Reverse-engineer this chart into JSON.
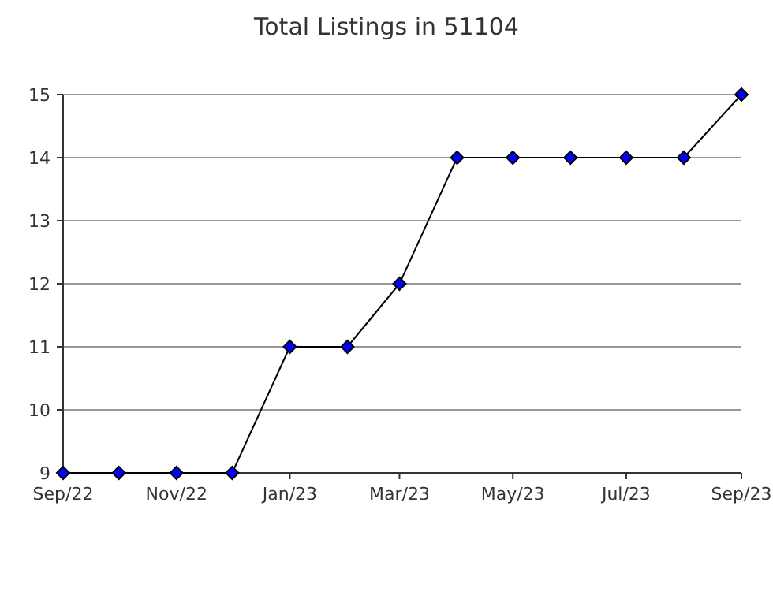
{
  "chart_data": {
    "type": "line",
    "title": "Total Listings in 51104",
    "x": [
      "2022-09",
      "2022-10",
      "2022-11",
      "2022-12",
      "2023-01",
      "2023-02",
      "2023-03",
      "2023-04",
      "2023-05",
      "2023-06",
      "2023-07",
      "2023-08",
      "2023-09"
    ],
    "series": [
      {
        "color": "#0000ff",
        "values": [
          9,
          9,
          9,
          9,
          11,
          11,
          12,
          14,
          14,
          14,
          14,
          14,
          15
        ]
      }
    ],
    "xlim": [
      "2022-09",
      "2023-09"
    ],
    "xticks": [
      {
        "value": "2022-09",
        "label": "Sep/22"
      },
      {
        "value": "2022-11",
        "label": "Nov/22"
      },
      {
        "value": "2023-01",
        "label": "Jan/23"
      },
      {
        "value": "2023-03",
        "label": "Mar/23"
      },
      {
        "value": "2023-05",
        "label": "May/23"
      },
      {
        "value": "2023-07",
        "label": "Jul/23"
      },
      {
        "value": "2023-09",
        "label": "Sep/23"
      }
    ],
    "ylim": [
      9,
      15
    ],
    "yticks": [
      9,
      10,
      11,
      12,
      13,
      14,
      15
    ],
    "grid": "y",
    "marker": "diamond",
    "line_style": "solid"
  }
}
